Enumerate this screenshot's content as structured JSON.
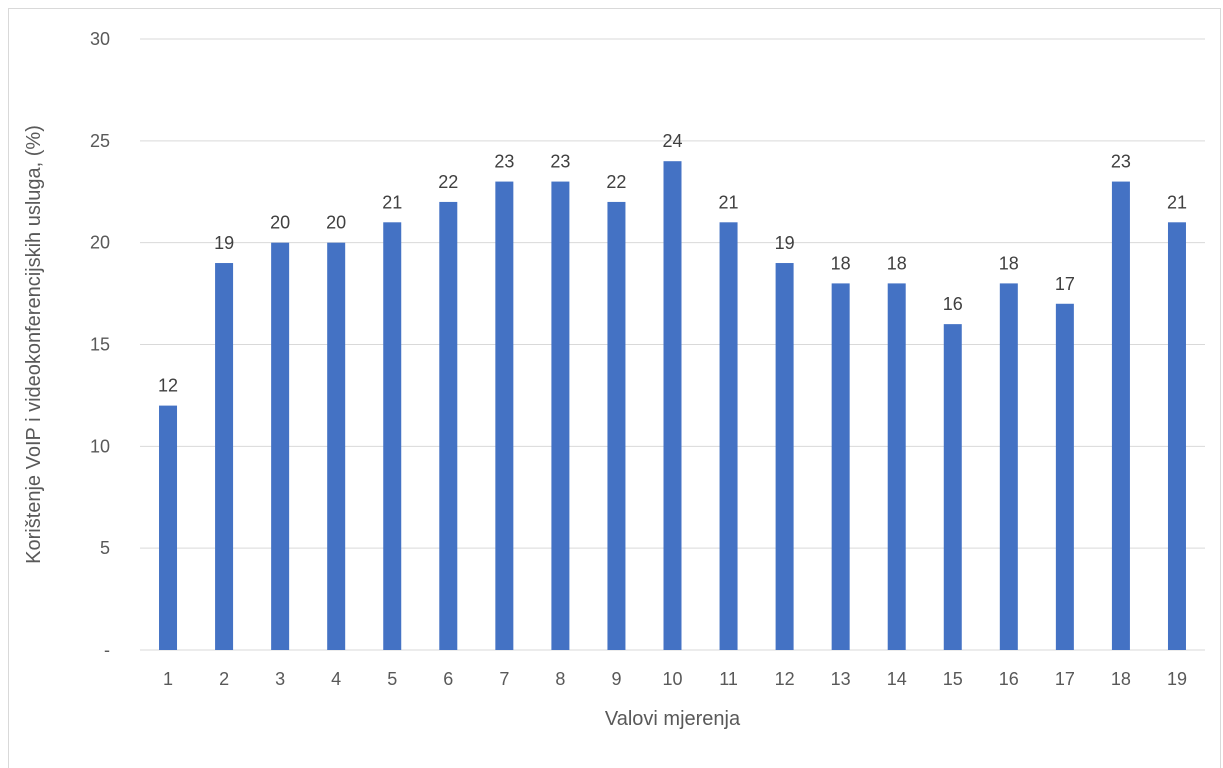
{
  "chart_data": {
    "type": "bar",
    "title": "",
    "xlabel": "Valovi mjerenja",
    "ylabel": "Korištenje VoIP i videokonferencijskih usluga, (%)",
    "categories": [
      "1",
      "2",
      "3",
      "4",
      "5",
      "6",
      "7",
      "8",
      "9",
      "10",
      "11",
      "12",
      "13",
      "14",
      "15",
      "16",
      "17",
      "18",
      "19"
    ],
    "values": [
      12,
      19,
      20,
      20,
      21,
      22,
      23,
      23,
      22,
      24,
      21,
      19,
      18,
      18,
      16,
      18,
      17,
      23,
      21
    ],
    "ylim": [
      0,
      30
    ],
    "yticks": [
      0,
      5,
      10,
      15,
      20,
      25,
      30
    ],
    "ytick_labels": [
      "-",
      "5",
      "10",
      "15",
      "20",
      "25",
      "30"
    ],
    "grid": true,
    "legend": "none",
    "colors": {
      "bar": "#4472c4",
      "grid": "#d9d9d9",
      "text": "#595959",
      "data_label": "#404040"
    }
  }
}
